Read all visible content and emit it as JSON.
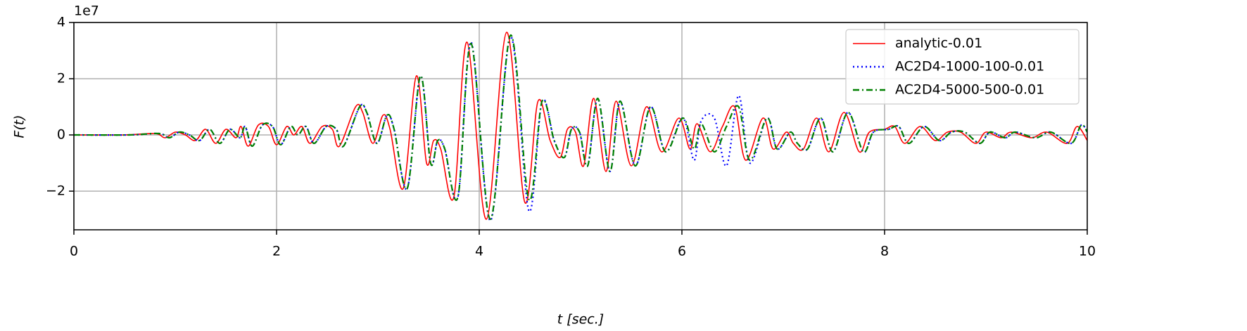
{
  "chart_data": {
    "type": "line",
    "offset_label": "1e7",
    "xlabel": "t [sec.]",
    "ylabel": "F(t)",
    "xlim": [
      0,
      10
    ],
    "xticks": [
      0,
      2,
      4,
      6,
      8,
      10
    ],
    "ylim": [
      -3.375,
      4
    ],
    "yticks": [
      {
        "value": -2,
        "label": "−2"
      },
      0,
      2,
      4
    ],
    "grid": true,
    "legend": "upper right",
    "series": [
      {
        "name": "analytic-0.01",
        "color": "#ff0000",
        "dash": "solid",
        "x": [
          0,
          0.5,
          0.8,
          0.9,
          1.0,
          1.1,
          1.2,
          1.3,
          1.4,
          1.5,
          1.6,
          1.65,
          1.72,
          1.82,
          1.92,
          2.0,
          2.1,
          2.17,
          2.25,
          2.33,
          2.45,
          2.55,
          2.62,
          2.78,
          2.85,
          2.95,
          3.05,
          3.12,
          3.25,
          3.38,
          3.48,
          3.55,
          3.62,
          3.75,
          3.88,
          4.07,
          4.27,
          4.45,
          4.58,
          4.7,
          4.8,
          4.87,
          4.95,
          5.03,
          5.13,
          5.25,
          5.35,
          5.5,
          5.65,
          5.8,
          5.97,
          6.08,
          6.15,
          6.28,
          6.4,
          6.52,
          6.63,
          6.8,
          6.9,
          7.03,
          7.1,
          7.2,
          7.33,
          7.45,
          7.6,
          7.75,
          7.85,
          8.0,
          8.1,
          8.2,
          8.35,
          8.5,
          8.62,
          8.75,
          8.9,
          9.0,
          9.15,
          9.25,
          9.45,
          9.6,
          9.8,
          9.9,
          10
        ],
        "values": [
          0,
          0,
          0.05,
          -0.1,
          0.1,
          0,
          -0.2,
          0.2,
          -0.3,
          0.2,
          -0.1,
          0.3,
          -0.4,
          0.35,
          0.3,
          -0.35,
          0.3,
          0,
          0.3,
          -0.3,
          0.3,
          0.2,
          -0.4,
          1.0,
          0.8,
          -0.3,
          0.7,
          0.2,
          -1.9,
          2.1,
          -1.0,
          -0.2,
          -0.5,
          -2.2,
          3.3,
          -3.0,
          3.65,
          -2.4,
          1.2,
          -0.2,
          -0.8,
          0.2,
          0.1,
          -1.1,
          1.3,
          -1.3,
          1.2,
          -1.1,
          1.0,
          -0.6,
          0.6,
          -0.5,
          0.4,
          -0.6,
          0.3,
          1.0,
          -0.9,
          0.6,
          -0.5,
          0.1,
          -0.3,
          -0.5,
          0.6,
          -0.6,
          0.8,
          -0.6,
          0.1,
          0.2,
          0.3,
          -0.3,
          0.3,
          -0.2,
          0.1,
          0.1,
          -0.3,
          0.1,
          -0.1,
          0.1,
          -0.1,
          0.1,
          -0.3,
          0.3,
          -0.2
        ]
      },
      {
        "name": "AC2D4-1000-100-0.01",
        "color": "#0000ff",
        "dash": "dotted",
        "x": [
          0,
          0.54,
          0.84,
          0.94,
          1.04,
          1.14,
          1.24,
          1.34,
          1.44,
          1.54,
          1.64,
          1.69,
          1.76,
          1.86,
          1.96,
          2.04,
          2.14,
          2.21,
          2.29,
          2.37,
          2.49,
          2.59,
          2.66,
          2.82,
          2.89,
          2.99,
          3.09,
          3.16,
          3.29,
          3.42,
          3.52,
          3.59,
          3.66,
          3.79,
          3.92,
          4.11,
          4.31,
          4.49,
          4.62,
          4.74,
          4.84,
          4.91,
          4.99,
          5.07,
          5.17,
          5.29,
          5.39,
          5.54,
          5.69,
          5.84,
          6.01,
          6.12,
          6.19,
          6.32,
          6.44,
          6.56,
          6.67,
          6.84,
          6.94,
          7.07,
          7.14,
          7.24,
          7.37,
          7.49,
          7.64,
          7.79,
          7.89,
          8.04,
          8.14,
          8.24,
          8.39,
          8.54,
          8.66,
          8.79,
          8.94,
          9.04,
          9.19,
          9.29,
          9.49,
          9.64,
          9.84,
          9.94,
          10
        ],
        "values": [
          0,
          0,
          0.05,
          -0.1,
          0.1,
          0,
          -0.2,
          0.2,
          -0.3,
          0.2,
          -0.1,
          0.3,
          -0.4,
          0.35,
          0.3,
          -0.35,
          0.3,
          0,
          0.3,
          -0.3,
          0.3,
          0.2,
          -0.4,
          1.0,
          0.8,
          -0.3,
          0.7,
          0.2,
          -1.9,
          2.1,
          -1.0,
          -0.2,
          -0.5,
          -2.2,
          3.3,
          -3.05,
          3.5,
          -2.7,
          1.2,
          -0.2,
          -0.8,
          0.2,
          0.1,
          -1.1,
          1.3,
          -1.3,
          1.2,
          -1.1,
          1.0,
          -0.6,
          0.6,
          -0.9,
          0.5,
          0.6,
          -1.1,
          1.4,
          -1.0,
          0.6,
          -0.5,
          0.1,
          -0.3,
          -0.5,
          0.6,
          -0.6,
          0.8,
          -0.6,
          0.1,
          0.2,
          0.3,
          -0.3,
          0.3,
          -0.2,
          0.1,
          0.1,
          -0.3,
          0.1,
          -0.1,
          0.1,
          -0.1,
          0.1,
          -0.3,
          0.35,
          0.1
        ]
      },
      {
        "name": "AC2D4-5000-500-0.01",
        "color": "#008000",
        "dash": "dashdot",
        "x": [
          0,
          0.54,
          0.84,
          0.94,
          1.04,
          1.14,
          1.24,
          1.34,
          1.44,
          1.54,
          1.64,
          1.69,
          1.76,
          1.86,
          1.96,
          2.04,
          2.14,
          2.21,
          2.29,
          2.37,
          2.49,
          2.59,
          2.66,
          2.82,
          2.89,
          2.99,
          3.09,
          3.16,
          3.29,
          3.42,
          3.52,
          3.59,
          3.66,
          3.79,
          3.92,
          4.11,
          4.31,
          4.49,
          4.62,
          4.74,
          4.84,
          4.91,
          4.99,
          5.07,
          5.17,
          5.29,
          5.39,
          5.54,
          5.69,
          5.84,
          6.01,
          6.12,
          6.19,
          6.32,
          6.44,
          6.56,
          6.67,
          6.84,
          6.94,
          7.07,
          7.14,
          7.24,
          7.37,
          7.49,
          7.64,
          7.79,
          7.89,
          8.04,
          8.14,
          8.24,
          8.39,
          8.54,
          8.66,
          8.79,
          8.94,
          9.04,
          9.19,
          9.29,
          9.49,
          9.64,
          9.84,
          9.94,
          10
        ],
        "values": [
          0,
          0,
          0.05,
          -0.1,
          0.1,
          0,
          -0.2,
          0.2,
          -0.3,
          0.2,
          -0.1,
          0.3,
          -0.4,
          0.35,
          0.3,
          -0.35,
          0.3,
          0,
          0.3,
          -0.3,
          0.3,
          0.2,
          -0.4,
          1.0,
          0.8,
          -0.3,
          0.7,
          0.2,
          -1.9,
          2.1,
          -1.0,
          -0.2,
          -0.5,
          -2.2,
          3.25,
          -3.0,
          3.55,
          -2.3,
          1.2,
          -0.2,
          -0.8,
          0.2,
          0.1,
          -1.1,
          1.3,
          -1.3,
          1.2,
          -1.1,
          1.0,
          -0.6,
          0.6,
          -0.5,
          0.4,
          -0.6,
          0.3,
          1.0,
          -0.9,
          0.6,
          -0.5,
          0.1,
          -0.3,
          -0.5,
          0.6,
          -0.6,
          0.8,
          -0.6,
          0.1,
          0.2,
          0.3,
          -0.3,
          0.3,
          -0.2,
          0.1,
          0.1,
          -0.3,
          0.1,
          -0.1,
          0.1,
          -0.1,
          0.1,
          -0.3,
          0.35,
          0.1
        ]
      }
    ]
  }
}
